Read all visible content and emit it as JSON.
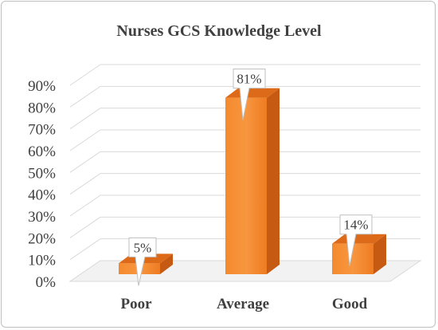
{
  "chart_data": {
    "type": "bar",
    "title": "Nurses GCS Knowledge Level",
    "categories": [
      "Poor",
      "Average",
      "Good"
    ],
    "values": [
      5,
      81,
      14
    ],
    "data_labels": [
      "5%",
      "81%",
      "14%"
    ],
    "y_ticks": [
      "0%",
      "10%",
      "20%",
      "30%",
      "40%",
      "50%",
      "60%",
      "70%",
      "80%",
      "90%"
    ],
    "ylim": [
      0,
      90
    ],
    "grid": true,
    "style": "3d-column",
    "bar_color": "#F07F26"
  }
}
